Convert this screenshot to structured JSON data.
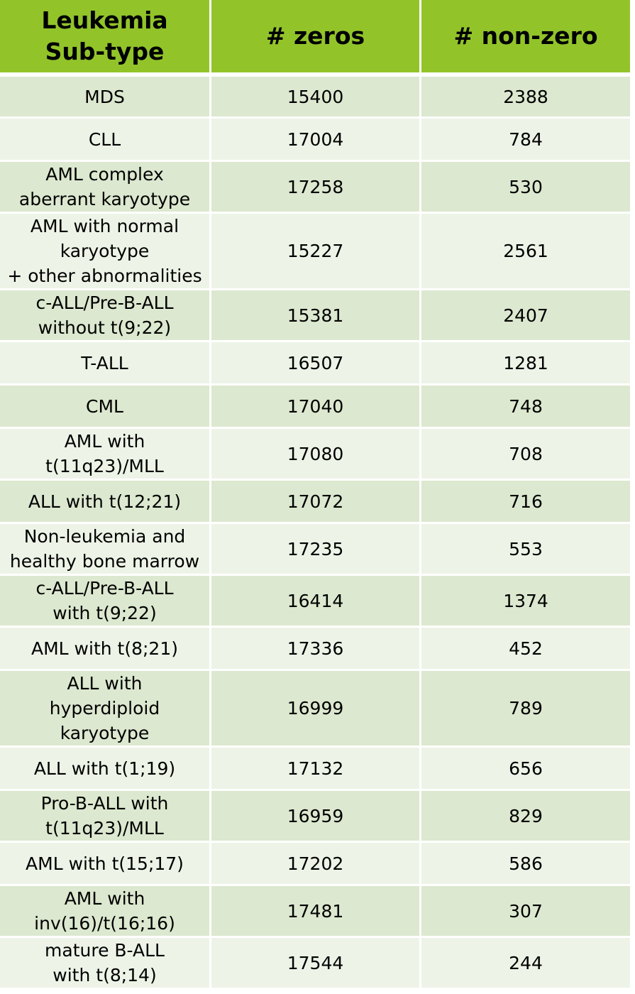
{
  "header": {
    "col1_line1": "Leukemia",
    "col1_line2": "Sub-type",
    "col2": "# zeros",
    "col3": "# non-zero"
  },
  "rows": [
    {
      "lines": [
        "MDS"
      ],
      "zeros": "15400",
      "nonzero": "2388"
    },
    {
      "lines": [
        "CLL"
      ],
      "zeros": "17004",
      "nonzero": "784"
    },
    {
      "lines": [
        "AML complex",
        "aberrant karyotype"
      ],
      "zeros": "17258",
      "nonzero": "530"
    },
    {
      "lines": [
        "AML with normal",
        "karyotype",
        "+ other abnormalities"
      ],
      "zeros": "15227",
      "nonzero": "2561"
    },
    {
      "lines": [
        "c-ALL/Pre-B-ALL",
        "without t(9;22)"
      ],
      "zeros": "15381",
      "nonzero": "2407"
    },
    {
      "lines": [
        "T-ALL"
      ],
      "zeros": "16507",
      "nonzero": "1281"
    },
    {
      "lines": [
        "CML"
      ],
      "zeros": "17040",
      "nonzero": "748"
    },
    {
      "lines": [
        "AML with",
        "t(11q23)/MLL"
      ],
      "zeros": "17080",
      "nonzero": "708"
    },
    {
      "lines": [
        "ALL with t(12;21)"
      ],
      "zeros": "17072",
      "nonzero": "716"
    },
    {
      "lines": [
        "Non-leukemia and",
        "healthy bone marrow"
      ],
      "zeros": "17235",
      "nonzero": "553"
    },
    {
      "lines": [
        "c-ALL/Pre-B-ALL",
        "with t(9;22)"
      ],
      "zeros": "16414",
      "nonzero": "1374"
    },
    {
      "lines": [
        "AML with t(8;21)"
      ],
      "zeros": "17336",
      "nonzero": "452"
    },
    {
      "lines": [
        "ALL with",
        "hyperdiploid",
        "karyotype"
      ],
      "zeros": "16999",
      "nonzero": "789"
    },
    {
      "lines": [
        "ALL with t(1;19)"
      ],
      "zeros": "17132",
      "nonzero": "656"
    },
    {
      "lines": [
        "Pro-B-ALL with",
        "t(11q23)/MLL"
      ],
      "zeros": "16959",
      "nonzero": "829"
    },
    {
      "lines": [
        "AML with t(15;17)"
      ],
      "zeros": "17202",
      "nonzero": "586"
    },
    {
      "lines": [
        "AML with",
        "inv(16)/t(16;16)"
      ],
      "zeros": "17481",
      "nonzero": "307"
    },
    {
      "lines": [
        "mature B-ALL",
        "with t(8;14)"
      ],
      "zeros": "17544",
      "nonzero": "244"
    }
  ],
  "colors": {
    "header_bg": "#92c42a",
    "row_even_bg": "#dce8cf",
    "row_odd_bg": "#edf4e7"
  }
}
